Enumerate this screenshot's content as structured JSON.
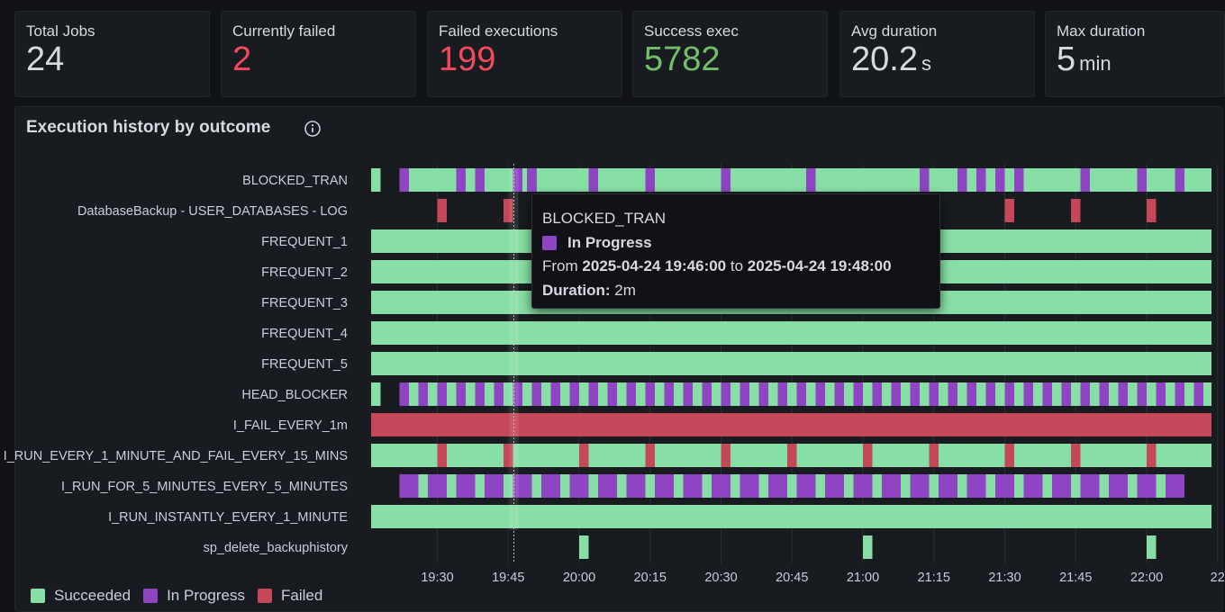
{
  "stats": [
    {
      "title": "Total Jobs",
      "value": "24",
      "unit": "",
      "color": "#d8d9e0"
    },
    {
      "title": "Currently failed",
      "value": "2",
      "unit": "",
      "color": "#f2495c"
    },
    {
      "title": "Failed executions",
      "value": "199",
      "unit": "",
      "color": "#f2495c"
    },
    {
      "title": "Success exec",
      "value": "5782",
      "unit": "",
      "color": "#73bf69"
    },
    {
      "title": "Avg duration",
      "value": "20.2",
      "unit": "s",
      "color": "#d8d9e0"
    },
    {
      "title": "Max duration",
      "value": "5",
      "unit": "min",
      "color": "#d8d9e0"
    }
  ],
  "panel": {
    "title": "Execution history by outcome"
  },
  "legend": [
    {
      "label": "Succeeded",
      "color": "#88dfa5"
    },
    {
      "label": "In Progress",
      "color": "#8f45c3"
    },
    {
      "label": "Failed",
      "color": "#c4475a"
    }
  ],
  "tooltip": {
    "job": "BLOCKED_TRAN",
    "state": "In Progress",
    "from_prefix": "From",
    "from": "2025-04-24 19:46:00",
    "to_word": "to",
    "to": "2025-04-24 19:48:00",
    "duration_label": "Duration:",
    "duration": "2m"
  },
  "chart_data": {
    "type": "timeline",
    "title": "Execution history by outcome",
    "x_ticks": [
      "19:30",
      "19:45",
      "20:00",
      "20:15",
      "20:30",
      "20:45",
      "21:00",
      "21:15",
      "21:30",
      "21:45",
      "22:00",
      "22"
    ],
    "colors": {
      "Succeeded": "#88dfa5",
      "In Progress": "#8f45c3",
      "Failed": "#c4475a"
    },
    "rows": [
      {
        "name": "BLOCKED_TRAN",
        "segments": [
          [
            "19:16",
            "19:18",
            "Succeeded"
          ],
          [
            "19:22",
            "19:24",
            "In Progress"
          ],
          [
            "19:24",
            "19:34",
            "Succeeded"
          ],
          [
            "19:34",
            "19:36",
            "In Progress"
          ],
          [
            "19:36",
            "19:38",
            "Succeeded"
          ],
          [
            "19:38",
            "19:40",
            "In Progress"
          ],
          [
            "19:40",
            "19:46",
            "Succeeded"
          ],
          [
            "19:46",
            "19:48",
            "In Progress"
          ],
          [
            "19:48",
            "19:49",
            "Succeeded"
          ],
          [
            "19:49",
            "19:51",
            "In Progress"
          ],
          [
            "19:51",
            "20:02",
            "Succeeded"
          ],
          [
            "20:02",
            "20:04",
            "In Progress"
          ],
          [
            "20:04",
            "20:14",
            "Succeeded"
          ],
          [
            "20:14",
            "20:16",
            "In Progress"
          ],
          [
            "20:16",
            "20:30",
            "Succeeded"
          ],
          [
            "20:30",
            "20:32",
            "In Progress"
          ],
          [
            "20:32",
            "20:48",
            "Succeeded"
          ],
          [
            "20:48",
            "20:50",
            "In Progress"
          ],
          [
            "20:50",
            "21:12",
            "Succeeded"
          ],
          [
            "21:12",
            "21:14",
            "In Progress"
          ],
          [
            "21:14",
            "21:20",
            "Succeeded"
          ],
          [
            "21:20",
            "21:22",
            "In Progress"
          ],
          [
            "21:22",
            "21:24",
            "Succeeded"
          ],
          [
            "21:24",
            "21:26",
            "In Progress"
          ],
          [
            "21:26",
            "21:28",
            "Succeeded"
          ],
          [
            "21:28",
            "21:30",
            "In Progress"
          ],
          [
            "21:30",
            "21:32",
            "Succeeded"
          ],
          [
            "21:32",
            "21:34",
            "In Progress"
          ],
          [
            "21:34",
            "21:46",
            "Succeeded"
          ],
          [
            "21:46",
            "21:48",
            "In Progress"
          ],
          [
            "21:48",
            "21:58",
            "Succeeded"
          ],
          [
            "21:58",
            "22:00",
            "In Progress"
          ],
          [
            "22:00",
            "22:06",
            "Succeeded"
          ],
          [
            "22:06",
            "22:08",
            "In Progress"
          ],
          [
            "22:08",
            "22:14",
            "Succeeded"
          ]
        ]
      },
      {
        "name": "DatabaseBackup - USER_DATABASES - LOG",
        "segments": [
          [
            "19:30",
            "19:32",
            "Failed"
          ],
          [
            "19:44",
            "19:46",
            "Failed"
          ],
          [
            "21:30",
            "21:32",
            "Failed"
          ],
          [
            "21:44",
            "21:46",
            "Failed"
          ],
          [
            "22:00",
            "22:02",
            "Failed"
          ]
        ]
      },
      {
        "name": "FREQUENT_1",
        "segments": [
          [
            "19:16",
            "22:14",
            "Succeeded"
          ]
        ]
      },
      {
        "name": "FREQUENT_2",
        "segments": [
          [
            "19:16",
            "22:14",
            "Succeeded"
          ]
        ]
      },
      {
        "name": "FREQUENT_3",
        "segments": [
          [
            "19:16",
            "22:14",
            "Succeeded"
          ]
        ]
      },
      {
        "name": "FREQUENT_4",
        "segments": [
          [
            "19:16",
            "22:14",
            "Succeeded"
          ]
        ]
      },
      {
        "name": "FREQUENT_5",
        "segments": [
          [
            "19:16",
            "22:14",
            "Succeeded"
          ]
        ]
      },
      {
        "name": "HEAD_BLOCKER",
        "segments": [
          [
            "19:16",
            "19:18",
            "Succeeded"
          ],
          [
            "19:22",
            "22:14",
            "In Progress/Succeeded alternating every 2m"
          ]
        ]
      },
      {
        "name": "I_FAIL_EVERY_1m",
        "segments": [
          [
            "19:16",
            "22:14",
            "Failed"
          ]
        ]
      },
      {
        "name": "I_RUN_EVERY_1_MINUTE_AND_FAIL_EVERY_15_MINS",
        "segments": [
          [
            "19:16",
            "22:14",
            "Succeeded"
          ],
          [
            "19:30",
            "19:32",
            "Failed"
          ],
          [
            "19:44",
            "19:46",
            "Failed"
          ],
          [
            "20:00",
            "20:02",
            "Failed"
          ],
          [
            "20:14",
            "20:16",
            "Failed"
          ],
          [
            "20:30",
            "20:32",
            "Failed"
          ],
          [
            "20:44",
            "20:46",
            "Failed"
          ],
          [
            "21:00",
            "21:02",
            "Failed"
          ],
          [
            "21:14",
            "21:16",
            "Failed"
          ],
          [
            "21:30",
            "21:32",
            "Failed"
          ],
          [
            "21:44",
            "21:46",
            "Failed"
          ],
          [
            "22:00",
            "22:02",
            "Failed"
          ]
        ]
      },
      {
        "name": "I_RUN_FOR_5_MINUTES_EVERY_5_MINUTES",
        "segments": [
          [
            "19:22",
            "22:08",
            "In Progress/Succeeded alternating every 3m"
          ]
        ]
      },
      {
        "name": "I_RUN_INSTANTLY_EVERY_1_MINUTE",
        "segments": [
          [
            "19:16",
            "22:14",
            "Succeeded"
          ]
        ]
      },
      {
        "name": "sp_delete_backuphistory",
        "segments": [
          [
            "20:00",
            "20:02",
            "Succeeded"
          ],
          [
            "21:00",
            "21:02",
            "Succeeded"
          ],
          [
            "22:00",
            "22:02",
            "Succeeded"
          ]
        ]
      }
    ]
  }
}
